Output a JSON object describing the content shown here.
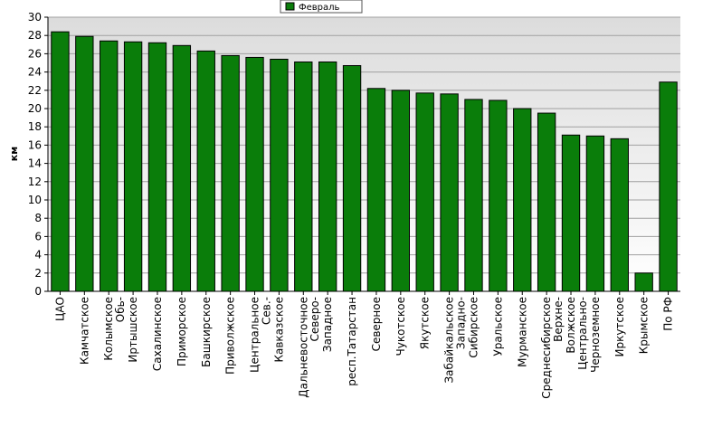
{
  "chart_data": {
    "type": "bar",
    "ylabel": "км",
    "ylim": [
      0,
      30
    ],
    "yticks": [
      0,
      2,
      4,
      6,
      8,
      10,
      12,
      14,
      16,
      18,
      20,
      22,
      24,
      26,
      28,
      30
    ],
    "grid": true,
    "legend_position": "top-center",
    "categories": [
      [
        "ЦАО"
      ],
      [
        "Камчатское"
      ],
      [
        "Колымское"
      ],
      [
        "Обь-",
        "Иртышское"
      ],
      [
        "Сахалинское"
      ],
      [
        "Приморское"
      ],
      [
        "Башкирское"
      ],
      [
        "Приволжское"
      ],
      [
        "Центральное"
      ],
      [
        "Сев.-",
        "Кавказское"
      ],
      [
        "Дальневосточное"
      ],
      [
        "Северо-",
        "Западное"
      ],
      [
        "респ.Татарстан"
      ],
      [
        "Северное"
      ],
      [
        "Чукотское"
      ],
      [
        "Якутское"
      ],
      [
        "Забайкальское"
      ],
      [
        "Западно-",
        "Сибирское"
      ],
      [
        "Уральское"
      ],
      [
        "Мурманское"
      ],
      [
        "Среднесибирское"
      ],
      [
        "Верхне-",
        "Волжское"
      ],
      [
        "Центрально-",
        "Черноземное"
      ],
      [
        "Иркутское"
      ],
      [
        "Крымское"
      ],
      [
        "По РФ"
      ]
    ],
    "series": [
      {
        "name": "Февраль",
        "color": "#0a7d0a",
        "values": [
          28.4,
          27.9,
          27.4,
          27.3,
          27.2,
          26.9,
          26.3,
          25.8,
          25.6,
          25.4,
          25.1,
          25.1,
          24.7,
          22.2,
          22.0,
          21.7,
          21.6,
          21.0,
          20.9,
          20.0,
          19.5,
          17.1,
          17.0,
          16.7,
          2.0,
          22.9
        ]
      }
    ]
  }
}
